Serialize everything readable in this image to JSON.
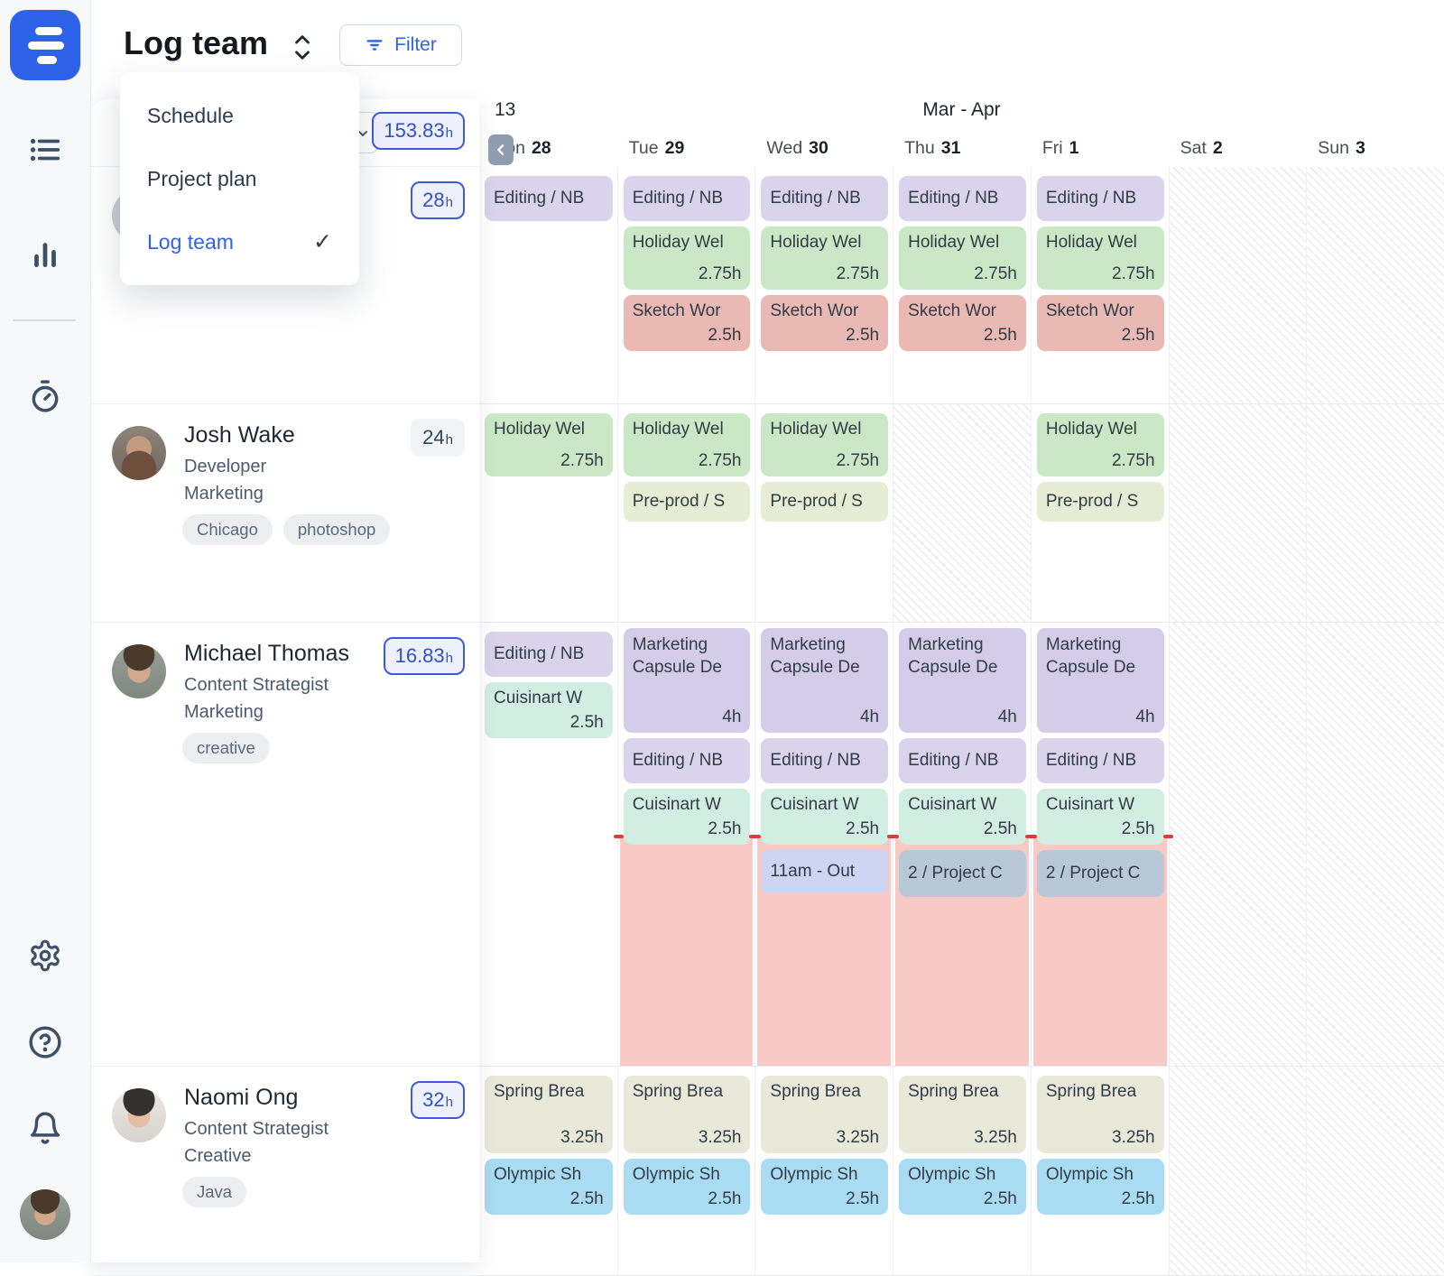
{
  "header": {
    "title": "Log team",
    "filter_label": "Filter"
  },
  "view_menu": {
    "items": [
      {
        "label": "Schedule",
        "selected": false
      },
      {
        "label": "Project plan",
        "selected": false
      },
      {
        "label": "Log team",
        "selected": true
      }
    ]
  },
  "team_panel": {
    "total_hours": "153.83",
    "hours_unit": "h"
  },
  "calendar": {
    "week_number": "13",
    "month_label": "Mar - Apr",
    "days": [
      {
        "name": "Mon",
        "date": "28",
        "weekend": false
      },
      {
        "name": "Tue",
        "date": "29",
        "weekend": false
      },
      {
        "name": "Wed",
        "date": "30",
        "weekend": false
      },
      {
        "name": "Thu",
        "date": "31",
        "weekend": false
      },
      {
        "name": "Fri",
        "date": "1",
        "weekend": false
      },
      {
        "name": "Sat",
        "date": "2",
        "weekend": true
      },
      {
        "name": "Sun",
        "date": "3",
        "weekend": true
      }
    ]
  },
  "colors": {
    "accent": "#2e62ea",
    "overtime_fill": "#f9c9c5",
    "overtime_marker": "#e23b36"
  },
  "block_types": {
    "editing": {
      "color": "#d9d3ee"
    },
    "holiday": {
      "color": "#cbe8c6"
    },
    "sketch": {
      "color": "#eab9b4"
    },
    "preprod": {
      "color": "#e6edd4"
    },
    "marketing": {
      "color": "#d3cdea"
    },
    "cuisinart": {
      "color": "#d2eee3"
    },
    "out": {
      "color": "#cdd5f2"
    },
    "project": {
      "color": "#b9c8d7"
    },
    "spring": {
      "color": "#e9e9da"
    },
    "olympic": {
      "color": "#a9dbf2"
    }
  },
  "people": [
    {
      "name": "",
      "role": "",
      "department": "",
      "tags": [],
      "logged_hours": "28",
      "badge_style": "outline",
      "avatar": "gray",
      "days": [
        {
          "blocks": [
            {
              "type": "editing",
              "label": "Editing / NB"
            }
          ]
        },
        {
          "blocks": [
            {
              "type": "editing",
              "label": "Editing / NB"
            },
            {
              "type": "holiday",
              "label": "Holiday Wel",
              "hours": "2.75h"
            },
            {
              "type": "sketch",
              "label": "Sketch Wor",
              "hours": "2.5h"
            }
          ]
        },
        {
          "blocks": [
            {
              "type": "editing",
              "label": "Editing / NB"
            },
            {
              "type": "holiday",
              "label": "Holiday Wel",
              "hours": "2.75h"
            },
            {
              "type": "sketch",
              "label": "Sketch Wor",
              "hours": "2.5h"
            }
          ]
        },
        {
          "blocks": [
            {
              "type": "editing",
              "label": "Editing / NB"
            },
            {
              "type": "holiday",
              "label": "Holiday Wel",
              "hours": "2.75h"
            },
            {
              "type": "sketch",
              "label": "Sketch Wor",
              "hours": "2.5h"
            }
          ]
        },
        {
          "blocks": [
            {
              "type": "editing",
              "label": "Editing / NB"
            },
            {
              "type": "holiday",
              "label": "Holiday Wel",
              "hours": "2.75h"
            },
            {
              "type": "sketch",
              "label": "Sketch Wor",
              "hours": "2.5h"
            }
          ]
        }
      ]
    },
    {
      "name": "Josh Wake",
      "role": "Developer",
      "department": "Marketing",
      "tags": [
        "Chicago",
        "photoshop"
      ],
      "logged_hours": "24",
      "badge_style": "plain",
      "avatar": "josh",
      "days": [
        {
          "blocks": [
            {
              "type": "holiday",
              "label": "Holiday Wel",
              "hours": "2.75h"
            }
          ]
        },
        {
          "blocks": [
            {
              "type": "holiday",
              "label": "Holiday Wel",
              "hours": "2.75h"
            },
            {
              "type": "preprod",
              "label": "Pre-prod / S"
            }
          ]
        },
        {
          "blocks": [
            {
              "type": "holiday",
              "label": "Holiday Wel",
              "hours": "2.75h"
            },
            {
              "type": "preprod",
              "label": "Pre-prod / S"
            }
          ]
        },
        {
          "time_off": true
        },
        {
          "blocks": [
            {
              "type": "holiday",
              "label": "Holiday Wel",
              "hours": "2.75h"
            },
            {
              "type": "preprod",
              "label": "Pre-prod / S"
            }
          ]
        }
      ]
    },
    {
      "name": "Michael Thomas",
      "role": "Content Strategist",
      "department": "Marketing",
      "tags": [
        "creative"
      ],
      "logged_hours": "16.83",
      "badge_style": "outline",
      "avatar": "michael",
      "overtime_days": [
        1,
        2,
        3,
        4
      ],
      "days": [
        {
          "blocks": [
            {
              "type": "editing",
              "label": "Editing / NB"
            },
            {
              "type": "cuisinart",
              "label": "Cuisinart W",
              "hours": "2.5h"
            }
          ]
        },
        {
          "blocks": [
            {
              "type": "marketing",
              "label": "Marketing Capsule De",
              "hours": "4h"
            },
            {
              "type": "editing",
              "label": "Editing / NB"
            },
            {
              "type": "cuisinart",
              "label": "Cuisinart W",
              "hours": "2.5h"
            }
          ]
        },
        {
          "blocks": [
            {
              "type": "marketing",
              "label": "Marketing Capsule De",
              "hours": "4h"
            },
            {
              "type": "editing",
              "label": "Editing / NB"
            },
            {
              "type": "cuisinart",
              "label": "Cuisinart W",
              "hours": "2.5h"
            },
            {
              "type": "out",
              "label": "11am - Out"
            }
          ]
        },
        {
          "blocks": [
            {
              "type": "marketing",
              "label": "Marketing Capsule De",
              "hours": "4h"
            },
            {
              "type": "editing",
              "label": "Editing / NB"
            },
            {
              "type": "cuisinart",
              "label": "Cuisinart W",
              "hours": "2.5h"
            },
            {
              "type": "project",
              "label": "2 / Project C"
            }
          ]
        },
        {
          "blocks": [
            {
              "type": "marketing",
              "label": "Marketing Capsule De",
              "hours": "4h"
            },
            {
              "type": "editing",
              "label": "Editing / NB"
            },
            {
              "type": "cuisinart",
              "label": "Cuisinart W",
              "hours": "2.5h"
            },
            {
              "type": "project",
              "label": "2 / Project C"
            }
          ]
        }
      ]
    },
    {
      "name": "Naomi Ong",
      "role": "Content Strategist",
      "department": "Creative",
      "tags": [
        "Java"
      ],
      "logged_hours": "32",
      "badge_style": "outline",
      "avatar": "naomi",
      "days": [
        {
          "blocks": [
            {
              "type": "spring",
              "label": "Spring Brea",
              "hours": "3.25h"
            },
            {
              "type": "olympic",
              "label": "Olympic Sh",
              "hours": "2.5h"
            }
          ]
        },
        {
          "blocks": [
            {
              "type": "spring",
              "label": "Spring Brea",
              "hours": "3.25h"
            },
            {
              "type": "olympic",
              "label": "Olympic Sh",
              "hours": "2.5h"
            }
          ]
        },
        {
          "blocks": [
            {
              "type": "spring",
              "label": "Spring Brea",
              "hours": "3.25h"
            },
            {
              "type": "olympic",
              "label": "Olympic Sh",
              "hours": "2.5h"
            }
          ]
        },
        {
          "blocks": [
            {
              "type": "spring",
              "label": "Spring Brea",
              "hours": "3.25h"
            },
            {
              "type": "olympic",
              "label": "Olympic Sh",
              "hours": "2.5h"
            }
          ]
        },
        {
          "blocks": [
            {
              "type": "spring",
              "label": "Spring Brea",
              "hours": "3.25h"
            },
            {
              "type": "olympic",
              "label": "Olympic Sh",
              "hours": "2.5h"
            }
          ]
        }
      ]
    }
  ],
  "icons": {
    "sidebar": [
      "brand-logo",
      "list-icon",
      "bar-chart-icon",
      "timer-icon",
      "settings-icon",
      "help-icon",
      "bell-icon",
      "user-avatar"
    ],
    "header": [
      "chevron-updown-icon",
      "filter-icon",
      "chevron-left-icon",
      "chevron-down-icon",
      "check-icon"
    ]
  }
}
